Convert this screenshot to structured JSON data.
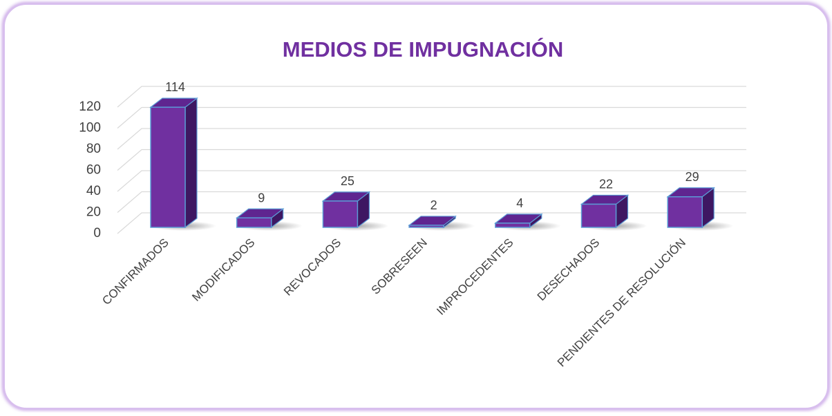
{
  "chart_data": {
    "type": "bar3d",
    "title": "MEDIOS DE IMPUGNACIÓN",
    "categories": [
      "CONFIRMADOS",
      "MODIFICADOS",
      "REVOCADOS",
      "SOBRESEEN",
      "IMPROCEDENTES",
      "DESECHADOS",
      "PENDIENTES DE RESOLUCIÓN"
    ],
    "values": [
      114,
      9,
      25,
      2,
      4,
      22,
      29
    ],
    "color": "#7030a0",
    "ylim": [
      0,
      120
    ],
    "yticks": [
      0,
      20,
      40,
      60,
      80,
      100,
      120
    ],
    "grid": true
  }
}
